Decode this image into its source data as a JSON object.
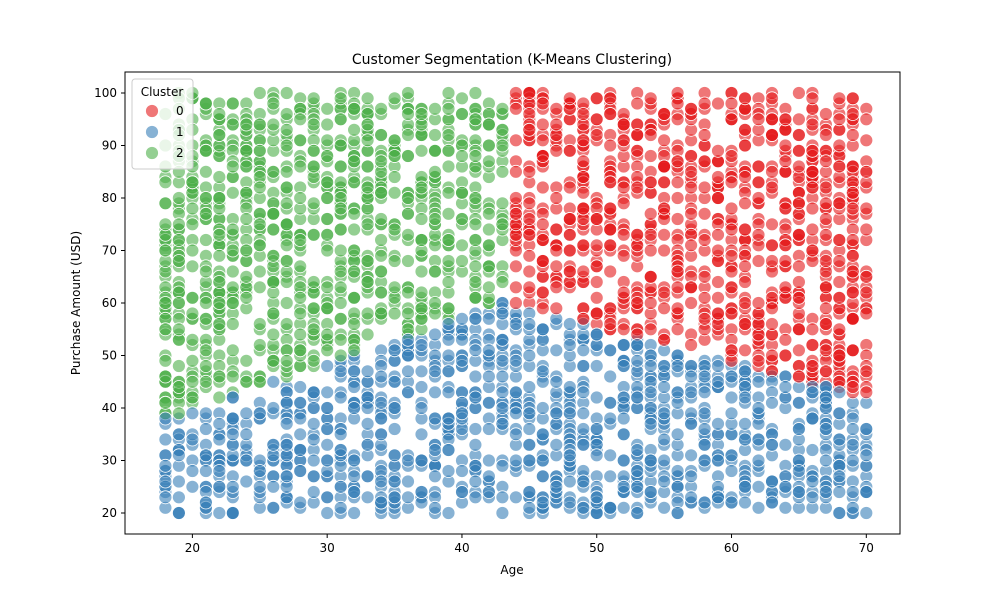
{
  "chart_data": {
    "type": "scatter",
    "title": "Customer Segmentation (K-Means Clustering)",
    "xlabel": "Age",
    "ylabel": "Purchase Amount (USD)",
    "xlim": [
      15,
      72.5
    ],
    "ylim": [
      16,
      104
    ],
    "xticks": [
      20,
      30,
      40,
      50,
      60,
      70
    ],
    "yticks": [
      20,
      30,
      40,
      50,
      60,
      70,
      80,
      90,
      100
    ],
    "grid": false,
    "legend": {
      "title": "Cluster",
      "placement": "top-left",
      "entries": [
        "0",
        "1",
        "2"
      ]
    },
    "colors": [
      "#e41a1c",
      "#377eb8",
      "#4daf4a"
    ],
    "x_range": [
      18,
      70
    ],
    "y_range": [
      20,
      100
    ],
    "ages": "integers 18–70",
    "clusters": [
      {
        "label": "0",
        "color": "#e41a1c",
        "region": "age 44–70, purchase above the boundary (≈57 at age 45 falling to ≈42 at age 70)"
      },
      {
        "label": "1",
        "color": "#377eb8",
        "region": "purchase 20 up to the boundary (≈38 at age 18, ≈60 at age 43, ≈42 at age 70)"
      },
      {
        "label": "2",
        "color": "#4daf4a",
        "region": "age 18–43, purchase above the boundary up to 100"
      }
    ]
  }
}
